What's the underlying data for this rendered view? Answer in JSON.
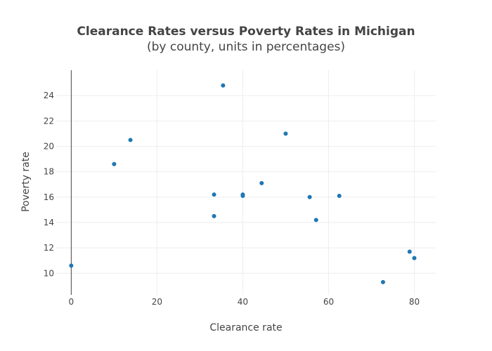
{
  "chart_data": {
    "type": "scatter",
    "title": "Clearance Rates versus Poverty Rates in Michigan",
    "subtitle": "(by county, units in percentages)",
    "xlabel": "Clearance rate",
    "ylabel": "Poverty rate",
    "xlim": [
      -3.5,
      85
    ],
    "ylim": [
      8.3,
      26
    ],
    "x_ticks": [
      0,
      20,
      40,
      60,
      80
    ],
    "y_ticks": [
      10,
      12,
      14,
      16,
      18,
      20,
      22,
      24
    ],
    "grid": true,
    "legend": "none",
    "marker_color": "#1f77b4",
    "zero_line_color": "#444444",
    "series": [
      {
        "points": [
          {
            "x": 0,
            "y": 10.6
          },
          {
            "x": 10,
            "y": 18.6
          },
          {
            "x": 13.8,
            "y": 20.5
          },
          {
            "x": 33.3,
            "y": 16.2
          },
          {
            "x": 33.3,
            "y": 14.5
          },
          {
            "x": 35.4,
            "y": 24.8
          },
          {
            "x": 40,
            "y": 16.2
          },
          {
            "x": 40,
            "y": 16.1
          },
          {
            "x": 44.4,
            "y": 17.1
          },
          {
            "x": 50,
            "y": 21.0
          },
          {
            "x": 55.6,
            "y": 16.0
          },
          {
            "x": 57.1,
            "y": 14.2
          },
          {
            "x": 62.5,
            "y": 16.1
          },
          {
            "x": 72.7,
            "y": 9.3
          },
          {
            "x": 78.9,
            "y": 11.7
          },
          {
            "x": 80,
            "y": 11.2
          }
        ]
      }
    ]
  }
}
